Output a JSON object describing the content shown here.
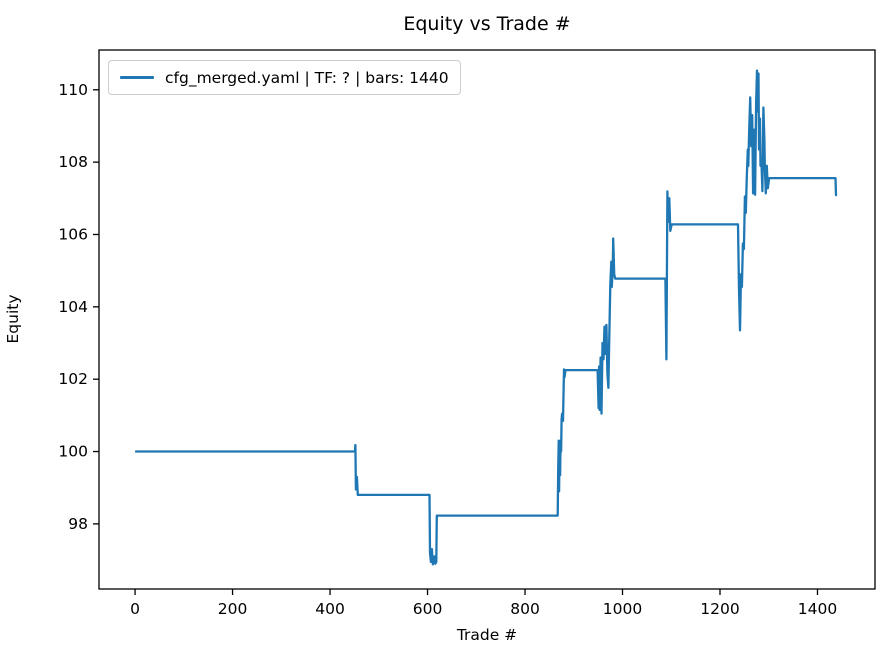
{
  "title": "Equity vs Trade #",
  "legend": {
    "label": "cfg_merged.yaml | TF: ? | bars: 1440",
    "line_color": "#1f77b4"
  },
  "colors": {
    "line": "#1f77b4",
    "axes": "#000000",
    "legend_border": "#cccccc",
    "background": "#ffffff"
  },
  "chart_data": {
    "type": "line",
    "title": "Equity vs Trade #",
    "xlabel": "Trade #",
    "ylabel": "Equity",
    "xlim": [
      -74,
      1518
    ],
    "ylim": [
      96.2,
      111.1
    ],
    "xticks": [
      0,
      200,
      400,
      600,
      800,
      1000,
      1200,
      1400
    ],
    "yticks": [
      98,
      100,
      102,
      104,
      106,
      108,
      110
    ],
    "grid": false,
    "legend_position": "upper left",
    "series": [
      {
        "name": "cfg_merged.yaml | TF: ? | bars: 1440",
        "color": "#1f77b4",
        "points": [
          [
            0,
            100.0
          ],
          [
            451,
            100.0
          ],
          [
            452,
            100.18
          ],
          [
            453,
            98.95
          ],
          [
            455,
            99.3
          ],
          [
            457,
            98.8
          ],
          [
            604,
            98.8
          ],
          [
            605,
            97.2
          ],
          [
            607,
            96.95
          ],
          [
            609,
            97.3
          ],
          [
            611,
            96.88
          ],
          [
            614,
            97.1
          ],
          [
            616,
            96.9
          ],
          [
            618,
            96.95
          ],
          [
            619,
            98.23
          ],
          [
            867,
            98.23
          ],
          [
            868,
            99.5
          ],
          [
            869,
            100.3
          ],
          [
            870,
            98.9
          ],
          [
            871,
            100.25
          ],
          [
            872,
            99.35
          ],
          [
            873,
            100.3
          ],
          [
            874,
            100.0
          ],
          [
            875,
            100.9
          ],
          [
            876,
            101.05
          ],
          [
            878,
            100.85
          ],
          [
            880,
            102.27
          ],
          [
            881,
            102.05
          ],
          [
            883,
            102.25
          ],
          [
            949,
            102.25
          ],
          [
            951,
            101.2
          ],
          [
            952,
            102.35
          ],
          [
            953,
            101.15
          ],
          [
            955,
            102.6
          ],
          [
            956,
            101.8
          ],
          [
            957,
            101.05
          ],
          [
            959,
            103.0
          ],
          [
            961,
            102.55
          ],
          [
            963,
            103.45
          ],
          [
            965,
            102.7
          ],
          [
            967,
            103.5
          ],
          [
            969,
            102.15
          ],
          [
            971,
            101.76
          ],
          [
            973,
            103.2
          ],
          [
            975,
            104.6
          ],
          [
            977,
            105.25
          ],
          [
            978,
            104.55
          ],
          [
            980,
            105.1
          ],
          [
            981,
            105.89
          ],
          [
            983,
            104.9
          ],
          [
            985,
            104.78
          ],
          [
            1088,
            104.78
          ],
          [
            1090,
            102.55
          ],
          [
            1092,
            107.19
          ],
          [
            1094,
            106.35
          ],
          [
            1096,
            107.0
          ],
          [
            1098,
            106.1
          ],
          [
            1101,
            106.28
          ],
          [
            1237,
            106.28
          ],
          [
            1239,
            104.5
          ],
          [
            1241,
            103.35
          ],
          [
            1243,
            104.9
          ],
          [
            1245,
            104.55
          ],
          [
            1247,
            105.75
          ],
          [
            1249,
            105.6
          ],
          [
            1251,
            107.05
          ],
          [
            1253,
            106.6
          ],
          [
            1255,
            107.6
          ],
          [
            1257,
            108.35
          ],
          [
            1258,
            107.9
          ],
          [
            1260,
            108.9
          ],
          [
            1262,
            109.79
          ],
          [
            1264,
            108.44
          ],
          [
            1266,
            109.3
          ],
          [
            1268,
            107.14
          ],
          [
            1270,
            108.9
          ],
          [
            1272,
            107.1
          ],
          [
            1274,
            109.6
          ],
          [
            1276,
            110.53
          ],
          [
            1277,
            109.4
          ],
          [
            1279,
            110.45
          ],
          [
            1280,
            108.35
          ],
          [
            1282,
            109.2
          ],
          [
            1283,
            107.9
          ],
          [
            1285,
            108.05
          ],
          [
            1287,
            107.2
          ],
          [
            1289,
            109.51
          ],
          [
            1291,
            108.6
          ],
          [
            1292,
            107.88
          ],
          [
            1294,
            107.14
          ],
          [
            1296,
            107.9
          ],
          [
            1298,
            107.28
          ],
          [
            1301,
            107.56
          ],
          [
            1437,
            107.56
          ],
          [
            1438,
            107.09
          ],
          [
            1440,
            107.09
          ]
        ]
      }
    ]
  }
}
